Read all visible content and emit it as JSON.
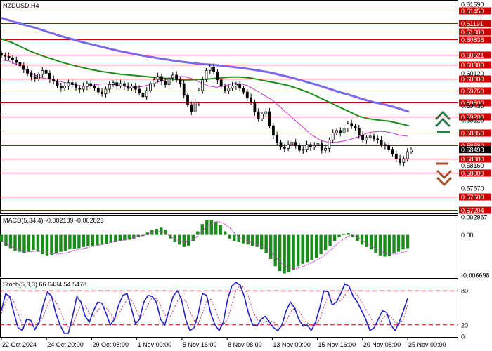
{
  "window": {
    "symbol_label": "NZDUSD,H4"
  },
  "colors": {
    "level_line": "#cc0000",
    "level_box": "#cc0000",
    "candle": "#000000",
    "ma_fast": "#cc33cc",
    "ma_mid": "#1a8c1a",
    "ma_slow": "#7b68ee",
    "macd_hist": "#1a8c1a",
    "macd_signal": "#cc33cc",
    "stoch_main": "#2222cc",
    "stoch_signal": "#cc3366",
    "arrow_up": "#2e7d4f",
    "arrow_down": "#a0522d"
  },
  "icons": {
    "up": "double-chevron-up-icon",
    "down": "double-chevron-down-icon"
  },
  "price_axis": {
    "levels": [
      "0.61450",
      "0.61191",
      "0.61000",
      "0.60836",
      "0.60521",
      "0.60300",
      "0.60000",
      "0.59750",
      "0.59500",
      "0.59200",
      "0.58850",
      "0.58580",
      "0.58300",
      "0.58000",
      "0.57500",
      "0.57204"
    ],
    "plain_ticks": [
      "0.61590",
      "0.60120",
      "0.59430",
      "0.59120",
      "0.58493",
      "0.58160",
      "0.57670"
    ],
    "current_price": "0.58493"
  },
  "chart_data": {
    "type": "candlestick",
    "title": "NZDUSD,H4",
    "x_labels": [
      "22 Oct 2024",
      "24 Oct 20:00",
      "29 Oct 08:00",
      "1 Nov 00:00",
      "5 Nov 16:00",
      "8 Nov 08:00",
      "13 Nov 00:00",
      "15 Nov 16:00",
      "20 Nov 08:00",
      "25 Nov 00:00"
    ],
    "ylim": [
      0.5715,
      0.6165
    ],
    "close_path": [
      0.605,
      0.6048,
      0.6045,
      0.604,
      0.6035,
      0.6028,
      0.602,
      0.6012,
      0.6005,
      0.6,
      0.601,
      0.6018,
      0.6012,
      0.6,
      0.5995,
      0.5985,
      0.598,
      0.5985,
      0.5992,
      0.5988,
      0.598,
      0.5978,
      0.5984,
      0.599,
      0.5985,
      0.598,
      0.5972,
      0.5968,
      0.5978,
      0.5988,
      0.5992,
      0.5985,
      0.599,
      0.5985,
      0.598,
      0.5985,
      0.5978,
      0.597,
      0.5962,
      0.5975,
      0.599,
      0.5998,
      0.6005,
      0.5995,
      0.5988,
      0.6002,
      0.6008,
      0.5998,
      0.599,
      0.5965,
      0.5945,
      0.593,
      0.595,
      0.5975,
      0.5998,
      0.6018,
      0.6025,
      0.6015,
      0.5998,
      0.5985,
      0.5975,
      0.598,
      0.5985,
      0.5988,
      0.598,
      0.5972,
      0.596,
      0.595,
      0.593,
      0.5915,
      0.5925,
      0.593,
      0.59,
      0.588,
      0.5865,
      0.5855,
      0.5852,
      0.586,
      0.5865,
      0.5858,
      0.5848,
      0.585,
      0.586,
      0.5855,
      0.5858,
      0.5862,
      0.5848,
      0.5852,
      0.587,
      0.5885,
      0.589,
      0.5885,
      0.5895,
      0.5905,
      0.59,
      0.5895,
      0.588,
      0.587,
      0.5875,
      0.5878,
      0.5872,
      0.587,
      0.586,
      0.5858,
      0.585,
      0.584,
      0.583,
      0.5822,
      0.583,
      0.5845,
      0.5849
    ],
    "series": [
      {
        "name": "",
        "kind": "ma",
        "values": [
          0.604,
          0.6038,
          0.603,
          0.602,
          0.601,
          0.6002,
          0.6,
          0.5996,
          0.5992,
          0.5988,
          0.5985,
          0.5985,
          0.5988,
          0.599,
          0.5988,
          0.5986,
          0.5982,
          0.5982,
          0.5985,
          0.599,
          0.5995,
          0.6,
          0.6005,
          0.6005,
          0.6,
          0.5992,
          0.5985,
          0.5982,
          0.5985,
          0.599,
          0.599,
          0.5985,
          0.5975,
          0.5965,
          0.5955,
          0.594,
          0.5925,
          0.591,
          0.5895,
          0.588,
          0.587,
          0.5865,
          0.5865,
          0.5868,
          0.5872,
          0.5878,
          0.5885,
          0.5888,
          0.5888,
          0.5885,
          0.588,
          0.5878
        ]
      },
      {
        "name": "",
        "kind": "ma",
        "values": [
          0.6085,
          0.6078,
          0.6068,
          0.6058,
          0.605,
          0.6043,
          0.6036,
          0.603,
          0.6025,
          0.602,
          0.6016,
          0.6013,
          0.601,
          0.6008,
          0.6006,
          0.6004,
          0.6002,
          0.6,
          0.5998,
          0.5998,
          0.5999,
          0.6,
          0.6002,
          0.6004,
          0.6004,
          0.6002,
          0.5998,
          0.5994,
          0.599,
          0.5985,
          0.5978,
          0.597,
          0.596,
          0.595,
          0.594,
          0.593,
          0.592,
          0.5915,
          0.5912,
          0.591,
          0.5905,
          0.59
        ]
      },
      {
        "name": "",
        "kind": "ma",
        "values": [
          0.613,
          0.6122,
          0.6115,
          0.6108,
          0.61,
          0.6092,
          0.6085,
          0.6078,
          0.6072,
          0.6066,
          0.606,
          0.6055,
          0.605,
          0.6046,
          0.6042,
          0.6038,
          0.6035,
          0.6032,
          0.603,
          0.6028,
          0.6025,
          0.6022,
          0.6018,
          0.6014,
          0.6008,
          0.6002,
          0.5995,
          0.5988,
          0.598,
          0.5972,
          0.5965,
          0.5957,
          0.595,
          0.5945,
          0.5938,
          0.593
        ]
      }
    ],
    "macd": {
      "title": "MACD(5,34,4) -0.002189 -0.002823",
      "ticks": [
        "0.002967",
        "0.00",
        "-0.006698"
      ],
      "ylim": [
        -0.0068,
        0.0031
      ],
      "histogram": [
        -0.0012,
        -0.0018,
        -0.0022,
        -0.0026,
        -0.0028,
        -0.003,
        -0.0028,
        -0.0025,
        -0.0028,
        -0.0032,
        -0.0034,
        -0.0033,
        -0.003,
        -0.0028,
        -0.0026,
        -0.0024,
        -0.0023,
        -0.0022,
        -0.002,
        -0.0019,
        -0.0018,
        -0.0017,
        -0.0016,
        -0.0015,
        -0.0013,
        -0.0012,
        -0.001,
        -0.0009,
        -0.0008,
        -0.0006,
        -0.0004,
        -0.0002,
        0.0004,
        0.0008,
        0.001,
        0.0012,
        0.0008,
        -0.0006,
        -0.0012,
        -0.0016,
        -0.002,
        -0.0018,
        -0.001,
        0.0006,
        0.0018,
        0.0024,
        0.0025,
        0.0022,
        0.0016,
        0.0006,
        -0.0006,
        -0.001,
        -0.0012,
        -0.0014,
        -0.0016,
        -0.0018,
        -0.002,
        -0.0024,
        -0.003,
        -0.004,
        -0.0052,
        -0.006,
        -0.0064,
        -0.0062,
        -0.0058,
        -0.0052,
        -0.0048,
        -0.0045,
        -0.0042,
        -0.0038,
        -0.0032,
        -0.0025,
        -0.0018,
        -0.001,
        -0.0004,
        0.0002,
        0.0003,
        -0.0004,
        -0.001,
        -0.0016,
        -0.002,
        -0.0024,
        -0.003,
        -0.0034,
        -0.0036,
        -0.0035,
        -0.003,
        -0.0028,
        -0.0024,
        -0.0022
      ],
      "signal": [
        -0.001,
        -0.0015,
        -0.002,
        -0.0024,
        -0.0027,
        -0.0028,
        -0.0027,
        -0.0027,
        -0.0029,
        -0.0031,
        -0.0032,
        -0.0031,
        -0.0029,
        -0.0026,
        -0.0024,
        -0.0022,
        -0.002,
        -0.0018,
        -0.0016,
        -0.0014,
        -0.0012,
        -0.001,
        -0.0008,
        -0.0006,
        -0.0004,
        -0.0002,
        0.0001,
        0.0004,
        0.0006,
        0.0005,
        0.0,
        -0.0006,
        -0.001,
        -0.0012,
        -0.001,
        -0.0004,
        0.0006,
        0.0014,
        0.002,
        0.0022,
        0.0019,
        0.0012,
        0.0002,
        -0.0006,
        -0.001,
        -0.0013,
        -0.0016,
        -0.002,
        -0.0026,
        -0.0034,
        -0.0044,
        -0.0052,
        -0.0056,
        -0.0056,
        -0.0053,
        -0.0049,
        -0.0045,
        -0.004,
        -0.0034,
        -0.0026,
        -0.0018,
        -0.001,
        -0.0004,
        0.0,
        -0.0004,
        -0.001,
        -0.0016,
        -0.0021,
        -0.0026,
        -0.003,
        -0.0032,
        -0.0031,
        -0.0029,
        -0.0027
      ]
    },
    "stoch": {
      "title": "Stoch(5,3,3) 66.6434 54.5478",
      "ticks": [
        "80",
        "20",
        "0"
      ],
      "ylim": [
        0,
        100
      ],
      "levels": [
        80,
        20
      ],
      "k": [
        45,
        75,
        70,
        40,
        15,
        10,
        30,
        28,
        12,
        25,
        55,
        78,
        70,
        40,
        20,
        5,
        5,
        35,
        70,
        60,
        35,
        25,
        45,
        60,
        58,
        40,
        20,
        30,
        55,
        72,
        75,
        50,
        22,
        30,
        60,
        72,
        70,
        60,
        30,
        20,
        45,
        70,
        80,
        65,
        30,
        10,
        15,
        40,
        75,
        72,
        40,
        20,
        10,
        25,
        65,
        88,
        95,
        90,
        70,
        40,
        20,
        18,
        30,
        35,
        25,
        15,
        10,
        20,
        45,
        60,
        50,
        30,
        18,
        20,
        10,
        25,
        50,
        80,
        78,
        55,
        60,
        75,
        92,
        88,
        70,
        60,
        45,
        30,
        10,
        15,
        30,
        45,
        42,
        20,
        10,
        25,
        45,
        66.6434
      ],
      "d": [
        40,
        60,
        70,
        60,
        40,
        22,
        20,
        25,
        25,
        22,
        35,
        55,
        68,
        60,
        45,
        28,
        15,
        20,
        40,
        55,
        55,
        40,
        35,
        45,
        55,
        50,
        40,
        30,
        38,
        52,
        65,
        65,
        50,
        35,
        38,
        55,
        68,
        66,
        55,
        38,
        30,
        45,
        62,
        70,
        62,
        45,
        28,
        22,
        40,
        62,
        65,
        48,
        28,
        20,
        30,
        55,
        80,
        90,
        85,
        70,
        45,
        30,
        22,
        26,
        28,
        25,
        18,
        16,
        25,
        42,
        50,
        45,
        32,
        24,
        18,
        20,
        30,
        52,
        70,
        68,
        62,
        62,
        72,
        82,
        80,
        72,
        60,
        48,
        35,
        22,
        20,
        30,
        38,
        35,
        25,
        22,
        30,
        54.5478
      ]
    }
  }
}
